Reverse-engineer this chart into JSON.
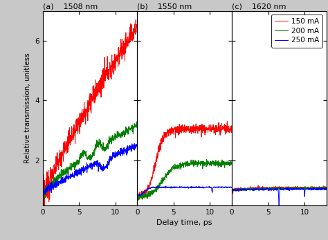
{
  "title_a": "(a)   1508 nm",
  "title_b": "(b)   1550 nm",
  "title_c": "(c)   1620 nm",
  "xlabel": "Delay time, ps",
  "ylabel": "Relative transmission, unitless",
  "legend_labels": [
    "150 mA",
    "200 mA",
    "250 mA"
  ],
  "colors": [
    "#ff0000",
    "#008000",
    "#0000ff"
  ],
  "ylim": [
    0.5,
    7.0
  ],
  "xlim": [
    0,
    13
  ],
  "yticks": [
    2,
    4,
    6
  ],
  "xticks": [
    0,
    5,
    10
  ],
  "background_color": "#ffffff",
  "fig_facecolor": "#c8c8c8"
}
